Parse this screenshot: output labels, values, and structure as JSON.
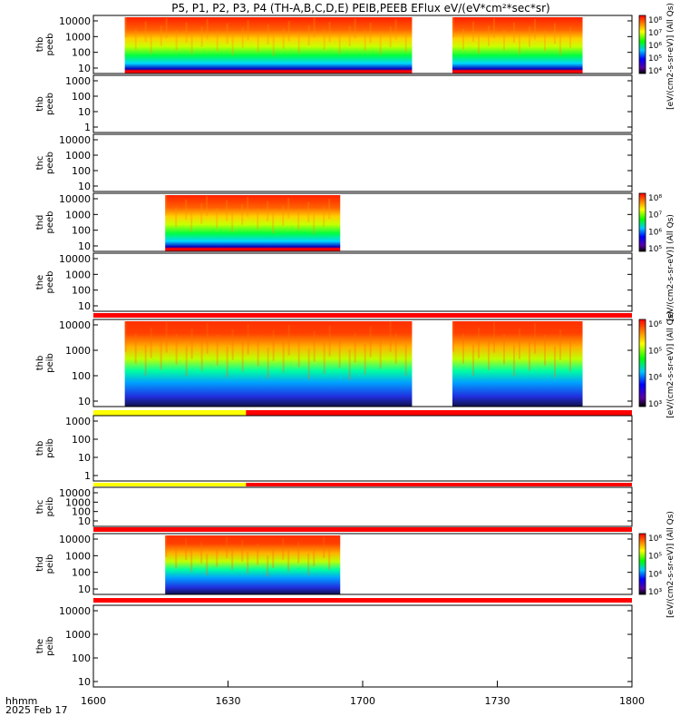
{
  "title": "P5, P1, P2, P3, P4 (TH-A,B,C,D,E) PEIB,PEEB EFlux eV/(eV*cm²*sec*sr)",
  "x_axis": {
    "label_line1": "hhmm",
    "label_line2": "2025 Feb 17",
    "ticks": [
      "1600",
      "1630",
      "1700",
      "1730",
      "1800"
    ]
  },
  "colorbars": [
    {
      "label": "[eV/(cm2-s-sr-eV)] (All Qs)",
      "ticks": [
        "10⁸",
        "10⁷",
        "10⁶",
        "10⁵",
        "10⁴"
      ]
    },
    {
      "label": "[eV/(cm2-s-sr-eV)] (All Qs)",
      "ticks": [
        "10⁸",
        "10⁷",
        "10⁶",
        "10⁵"
      ]
    },
    {
      "label": "[eV/(cm2-s-sr-eV)] (All Qs)",
      "ticks": [
        "10⁶",
        "10⁵",
        "10⁴",
        "10³"
      ]
    },
    {
      "label": "[eV/(cm2-s-sr-eV)] (All Qs)",
      "ticks": [
        "10⁶",
        "10⁵",
        "10⁴",
        "10³"
      ]
    }
  ],
  "chart_data": {
    "type": "heatmap",
    "x_range": [
      "16:00",
      "18:00"
    ],
    "y_scale": "log",
    "panels": [
      {
        "ylabel": [
          "thb",
          "peeb"
        ],
        "yticks": [
          "10000",
          "1000",
          "100",
          "10"
        ],
        "data_intervals": [
          [
            "16:07",
            "17:11"
          ],
          [
            "17:20",
            "17:49"
          ]
        ],
        "status_bar": null
      },
      {
        "ylabel": [
          "thb",
          "peeb"
        ],
        "yticks": [
          "1000",
          "100",
          "10",
          "1"
        ],
        "data_intervals": [],
        "status_bar": null
      },
      {
        "ylabel": [
          "thc",
          "peeb"
        ],
        "yticks": [
          "10000",
          "1000",
          "100",
          "10"
        ],
        "data_intervals": [],
        "status_bar": null
      },
      {
        "ylabel": [
          "thd",
          "peeb"
        ],
        "yticks": [
          "10000",
          "1000",
          "100",
          "10"
        ],
        "data_intervals": [
          [
            "16:16",
            "16:55"
          ]
        ],
        "status_bar": null
      },
      {
        "ylabel": [
          "the",
          "peeb"
        ],
        "yticks": [
          "10000",
          "1000",
          "100",
          "10"
        ],
        "data_intervals": [],
        "status_bar": "red"
      },
      {
        "ylabel": [
          "thb",
          "peib"
        ],
        "yticks": [
          "10000",
          "1000",
          "100",
          "10"
        ],
        "data_intervals": [
          [
            "16:07",
            "17:11"
          ],
          [
            "17:20",
            "17:49"
          ]
        ],
        "status_bar": "yellow-red"
      },
      {
        "ylabel": [
          "thb",
          "peib"
        ],
        "yticks": [
          "1000",
          "100",
          "10",
          "1"
        ],
        "data_intervals": [],
        "status_bar": "yellow-red"
      },
      {
        "ylabel": [
          "thc",
          "peib"
        ],
        "yticks": [
          "10000",
          "1000",
          "100",
          "10"
        ],
        "data_intervals": [],
        "status_bar": "red"
      },
      {
        "ylabel": [
          "thd",
          "peib"
        ],
        "yticks": [
          "10000",
          "1000",
          "100",
          "10"
        ],
        "data_intervals": [
          [
            "16:16",
            "16:55"
          ]
        ],
        "status_bar": "red"
      },
      {
        "ylabel": [
          "the",
          "peib"
        ],
        "yticks": [
          "10000",
          "1000",
          "100",
          "10"
        ],
        "data_intervals": [],
        "status_bar": null
      }
    ],
    "colors": {
      "red": "#ff0000",
      "yellow": "#ffff00"
    }
  }
}
